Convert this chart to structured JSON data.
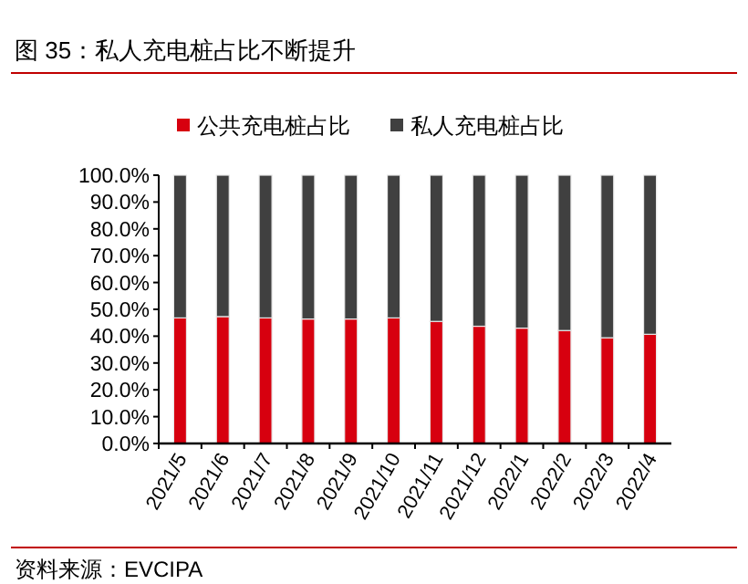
{
  "chart_data": {
    "type": "bar",
    "title": "图 35：私人充电桩占比不断提升",
    "stacked": true,
    "legend": "top",
    "categories": [
      "2021/5",
      "2021/6",
      "2021/7",
      "2021/8",
      "2021/9",
      "2021/10",
      "2021/11",
      "2021/12",
      "2022/1",
      "2022/2",
      "2022/3",
      "2022/4"
    ],
    "series": [
      {
        "name": "公共充电桩占比",
        "color": "#d7000f",
        "values": [
          46.8,
          47.3,
          46.8,
          46.4,
          46.4,
          46.8,
          45.5,
          43.7,
          43.0,
          42.1,
          39.4,
          40.7
        ]
      },
      {
        "name": "私人充电桩占比",
        "color": "#404040",
        "values": [
          53.2,
          52.7,
          53.2,
          53.6,
          53.6,
          53.2,
          54.5,
          56.3,
          57.0,
          57.9,
          60.6,
          59.3
        ]
      }
    ],
    "ylim": [
      0,
      100
    ],
    "yticks": [
      {
        "value": 0,
        "label": "0.0%"
      },
      {
        "value": 10,
        "label": "10.0%"
      },
      {
        "value": 20,
        "label": "20.0%"
      },
      {
        "value": 30,
        "label": "30.0%"
      },
      {
        "value": 40,
        "label": "40.0%"
      },
      {
        "value": 50,
        "label": "50.0%"
      },
      {
        "value": 60,
        "label": "60.0%"
      },
      {
        "value": 70,
        "label": "70.0%"
      },
      {
        "value": 80,
        "label": "80.0%"
      },
      {
        "value": 90,
        "label": "90.0%"
      },
      {
        "value": 100,
        "label": "100.0%"
      }
    ],
    "annotations": [
      "资料来源：EVCIPA"
    ]
  }
}
